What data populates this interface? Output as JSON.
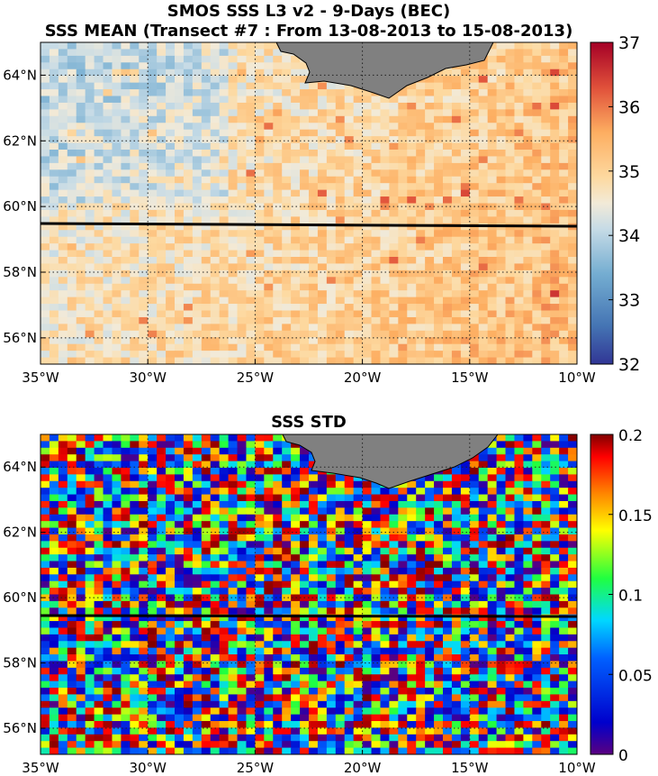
{
  "figure": {
    "title_line1": "SMOS SSS L3 v2 - 9-Days (BEC)",
    "title_line2": "SSS MEAN (Transect #7 : From 13-08-2013 to 15-08-2013)",
    "title_std": "SSS STD"
  },
  "chart_data": [
    {
      "type": "heatmap",
      "name": "mean-map",
      "title": "SSS MEAN (Transect #7 : From 13-08-2013 to 15-08-2013)",
      "x_ticks": [
        "35°W",
        "30°W",
        "25°W",
        "20°W",
        "15°W",
        "10°W"
      ],
      "y_ticks": [
        "56°N",
        "58°N",
        "60°N",
        "62°N",
        "64°N"
      ],
      "xlim": [
        -35,
        -10
      ],
      "ylim": [
        55.2,
        65
      ],
      "colorbar_ticks": [
        "32",
        "33",
        "34",
        "35",
        "36",
        "37"
      ],
      "clim": [
        32,
        37
      ],
      "colormap": "blue-white-red (diverging)",
      "transect_lat": 59.6,
      "grid": "dotted",
      "land_color": "#808080"
    },
    {
      "type": "heatmap",
      "name": "std-map",
      "title": "SSS STD",
      "x_ticks": [
        "35°W",
        "30°W",
        "25°W",
        "20°W",
        "15°W",
        "10°W"
      ],
      "y_ticks": [
        "56°N",
        "58°N",
        "60°N",
        "62°N",
        "64°N"
      ],
      "xlim": [
        -35,
        -10
      ],
      "ylim": [
        55.2,
        65
      ],
      "colorbar_ticks": [
        "0",
        "0.05",
        "0.1",
        "0.15",
        "0.2"
      ],
      "clim": [
        0,
        0.2
      ],
      "colormap": "jet",
      "transect_lat": 59.6,
      "grid": "dotted",
      "land_color": "#808080"
    }
  ]
}
